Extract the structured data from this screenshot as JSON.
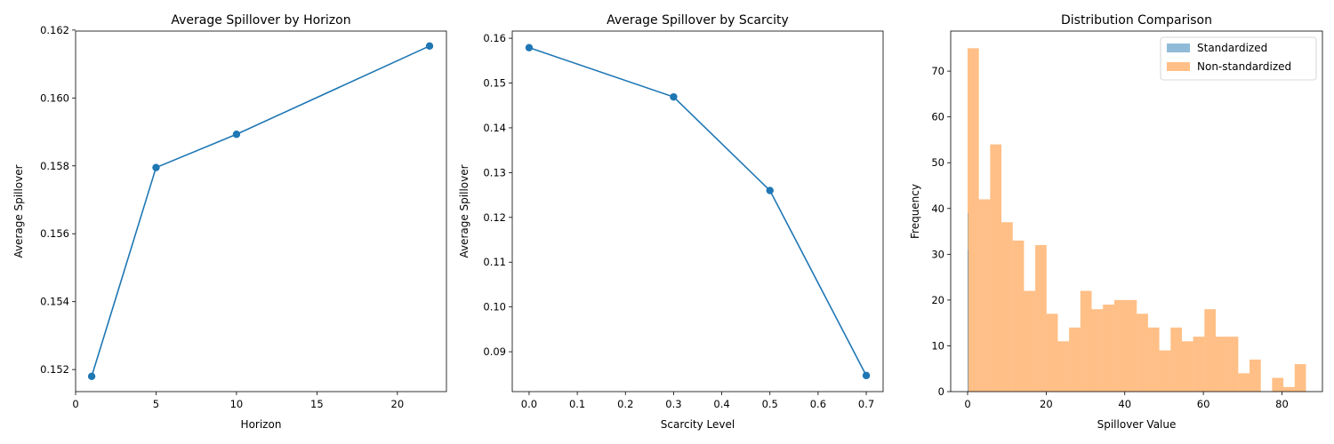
{
  "chart_data": [
    {
      "type": "line",
      "title": "Average Spillover by Horizon",
      "xlabel": "Horizon",
      "ylabel": "Average Spillover",
      "xlim": [
        0,
        23.05
      ],
      "ylim": [
        0.15135,
        0.16197
      ],
      "xticks": [
        0,
        5,
        10,
        15,
        20
      ],
      "yticks": [
        0.152,
        0.154,
        0.156,
        0.158,
        0.16,
        0.162
      ],
      "y_decimals": 3,
      "x_decimals": 0,
      "color": "#1f77b4",
      "series": [
        {
          "x": [
            1,
            5,
            10,
            22
          ],
          "y": [
            0.1518,
            0.15795,
            0.15893,
            0.16153
          ]
        }
      ]
    },
    {
      "type": "line",
      "title": "Average Spillover by Scarcity",
      "xlabel": "Scarcity Level",
      "ylabel": "Average Spillover",
      "xlim": [
        -0.035,
        0.735
      ],
      "ylim": [
        0.0811,
        0.1616
      ],
      "xticks": [
        0.0,
        0.1,
        0.2,
        0.3,
        0.4,
        0.5,
        0.6,
        0.7
      ],
      "yticks": [
        0.09,
        0.1,
        0.11,
        0.12,
        0.13,
        0.14,
        0.15,
        0.16
      ],
      "y_decimals": 2,
      "x_decimals": 1,
      "color": "#1f77b4",
      "series": [
        {
          "x": [
            0.0,
            0.3,
            0.5,
            0.7
          ],
          "y": [
            0.1579,
            0.1469,
            0.126,
            0.0847
          ]
        }
      ]
    },
    {
      "type": "bar",
      "title": "Distribution Comparison",
      "xlabel": "Spillover Value",
      "ylabel": "Frequency",
      "xlim": [
        -4.3,
        90.3
      ],
      "ylim": [
        0,
        78.75
      ],
      "xticks": [
        0,
        20,
        40,
        60,
        80
      ],
      "yticks": [
        0,
        10,
        20,
        30,
        40,
        50,
        60,
        70
      ],
      "legend_position": "top-right",
      "series": [
        {
          "name": "Standardized",
          "color": "#1f77b4",
          "bin_width": 0.07,
          "bin_start": 0,
          "values": [
            39,
            31
          ]
        },
        {
          "name": "Non-standardized",
          "color": "#ff7f0e",
          "bin_start": 0,
          "bin_width": 2.87,
          "values": [
            75,
            42,
            54,
            37,
            33,
            22,
            32,
            17,
            11,
            14,
            22,
            18,
            19,
            20,
            20,
            17,
            14,
            9,
            14,
            11,
            12,
            18,
            12,
            12,
            4,
            7,
            0,
            3,
            1,
            6
          ]
        }
      ]
    }
  ]
}
